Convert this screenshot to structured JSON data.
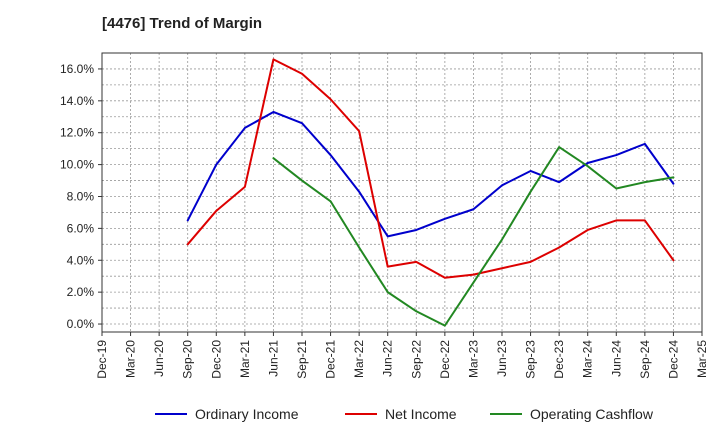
{
  "chart_data": {
    "type": "line",
    "title": "[4476]  Trend of Margin",
    "xlabel": "",
    "ylabel": "",
    "x": [
      "Dec-19",
      "Mar-20",
      "Jun-20",
      "Sep-20",
      "Dec-20",
      "Mar-21",
      "Jun-21",
      "Sep-21",
      "Dec-21",
      "Mar-22",
      "Jun-22",
      "Sep-22",
      "Dec-22",
      "Mar-23",
      "Jun-23",
      "Sep-23",
      "Dec-23",
      "Mar-24",
      "Jun-24",
      "Sep-24",
      "Dec-24",
      "Mar-25"
    ],
    "ylim": [
      -0.5,
      17.0
    ],
    "yticks": [
      0.0,
      2.0,
      4.0,
      6.0,
      8.0,
      10.0,
      12.0,
      14.0,
      16.0
    ],
    "ytick_labels": [
      "0.0%",
      "2.0%",
      "4.0%",
      "6.0%",
      "8.0%",
      "10.0%",
      "12.0%",
      "14.0%",
      "16.0%"
    ],
    "grid": true,
    "legend_position": "bottom",
    "series": [
      {
        "name": "Ordinary Income",
        "color": "#0000cc",
        "values": [
          null,
          null,
          null,
          6.5,
          10.0,
          12.3,
          13.3,
          12.6,
          10.6,
          8.3,
          5.5,
          5.9,
          6.6,
          7.2,
          8.7,
          9.6,
          8.9,
          10.1,
          10.6,
          11.3,
          8.8,
          null
        ]
      },
      {
        "name": "Net Income",
        "color": "#dd0000",
        "values": [
          null,
          null,
          null,
          5.0,
          7.1,
          8.6,
          16.6,
          15.7,
          14.1,
          12.1,
          3.6,
          3.9,
          2.9,
          3.1,
          3.5,
          3.9,
          4.8,
          5.9,
          6.5,
          6.5,
          4.0,
          null
        ]
      },
      {
        "name": "Operating Cashflow",
        "color": "#228822",
        "values": [
          null,
          null,
          null,
          null,
          null,
          null,
          10.4,
          9.0,
          7.7,
          4.8,
          2.0,
          0.8,
          -0.1,
          2.6,
          5.3,
          8.3,
          11.1,
          9.9,
          8.5,
          8.9,
          9.2,
          null
        ]
      }
    ]
  }
}
